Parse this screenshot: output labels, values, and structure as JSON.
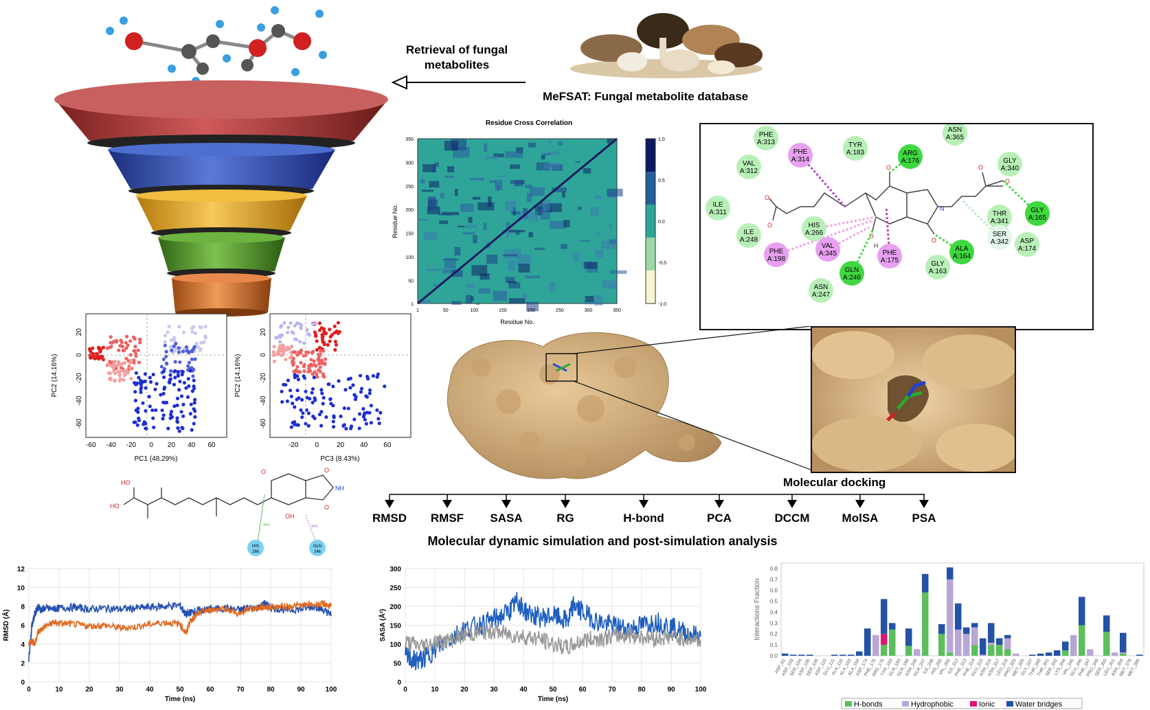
{
  "header": {
    "retrieval_line1": "Retrieval of fungal",
    "retrieval_line2": "metabolites",
    "database_label": "MeFSAT: Fungal metabolite database"
  },
  "dccm": {
    "title": "Residue Cross Correlation",
    "xlabel": "Residue No.",
    "ylabel": "Residue No.",
    "xticks": [
      "1",
      "50",
      "100",
      "150",
      "200",
      "250",
      "300",
      "350"
    ],
    "yticks": [
      "1",
      "50",
      "100",
      "150",
      "200",
      "250",
      "300",
      "350"
    ],
    "colorbar_ticks": [
      "1.0",
      "0.5",
      "0.0",
      "-0.5",
      "-1.0"
    ]
  },
  "interaction_map": {
    "residues": [
      {
        "name": "PHE",
        "num": "A:313",
        "kind": "vdw"
      },
      {
        "name": "VAL",
        "num": "A:312",
        "kind": "vdw"
      },
      {
        "name": "PHE",
        "num": "A:314",
        "kind": "pi"
      },
      {
        "name": "TYR",
        "num": "A:183",
        "kind": "vdw"
      },
      {
        "name": "ARG",
        "num": "A:176",
        "kind": "hbond"
      },
      {
        "name": "ASN",
        "num": "A:365",
        "kind": "vdw"
      },
      {
        "name": "GLY",
        "num": "A:340",
        "kind": "vdw"
      },
      {
        "name": "ILE",
        "num": "A:311",
        "kind": "vdw"
      },
      {
        "name": "GLY",
        "num": "A:165",
        "kind": "hbond"
      },
      {
        "name": "THR",
        "num": "A:341",
        "kind": "vdw"
      },
      {
        "name": "ILE",
        "num": "A:248",
        "kind": "vdw"
      },
      {
        "name": "HIS",
        "num": "A:266",
        "kind": "vdw"
      },
      {
        "name": "SER",
        "num": "A:342",
        "kind": "weak"
      },
      {
        "name": "ASP",
        "num": "A:174",
        "kind": "vdw"
      },
      {
        "name": "PHE",
        "num": "A:198",
        "kind": "pi"
      },
      {
        "name": "VAL",
        "num": "A:345",
        "kind": "pi"
      },
      {
        "name": "PHE",
        "num": "A:175",
        "kind": "pi"
      },
      {
        "name": "ALA",
        "num": "A:164",
        "kind": "hbond"
      },
      {
        "name": "GLN",
        "num": "A:246",
        "kind": "hbond"
      },
      {
        "name": "GLY",
        "num": "A:163",
        "kind": "vdw"
      },
      {
        "name": "ASN",
        "num": "A:247",
        "kind": "vdw"
      }
    ]
  },
  "pca": {
    "plot1": {
      "xlabel": "PC1 (48.29%)",
      "ylabel": "PC2 (14.16%)",
      "xticks": [
        "-60",
        "-40",
        "-20",
        "0",
        "20",
        "40",
        "60"
      ],
      "yticks": [
        "20",
        "0",
        "-20",
        "-40",
        "-60"
      ]
    },
    "plot2": {
      "xlabel": "PC3 (8.43%)",
      "ylabel": "PC2 (14.16%)",
      "xticks": [
        "-20",
        "0",
        "20",
        "40",
        "60"
      ],
      "yticks": [
        "20",
        "0",
        "-20",
        "-40",
        "-60"
      ]
    }
  },
  "ligand2d": {
    "atoms": [
      "HO",
      "HO",
      "OH",
      "O",
      "O",
      "NH",
      "O"
    ],
    "contacts": [
      {
        "res": "HIS",
        "num": "266",
        "pct": "40%"
      },
      {
        "res": "GLN",
        "num": "246",
        "pct": "39%"
      }
    ]
  },
  "docking_label": "Molecular docking",
  "analyses": [
    "RMSD",
    "RMSF",
    "SASA",
    "RG",
    "H-bond",
    "PCA",
    "DCCM",
    "MolSA",
    "PSA"
  ],
  "md_label": "Molecular dynamic simulation and post-simulation analysis",
  "colors": {
    "funnel": [
      "#b83a3a",
      "#2f4fb3",
      "#e8a91e",
      "#4f9a2a",
      "#d6752a"
    ],
    "rmsd_blue": "#2450b0",
    "rmsd_orange": "#e06a20",
    "sasa_blue": "#1e5fbf",
    "sasa_gray": "#999999",
    "hbonds": "#5cbf5c",
    "hydrophobic": "#b7a6d6",
    "ionic": "#e0146e",
    "water": "#2352a6"
  },
  "chart_data": [
    {
      "type": "line",
      "title": "",
      "xlabel": "Time (ns)",
      "ylabel": "RMSD (Å)",
      "xlim": [
        0,
        100
      ],
      "ylim": [
        0,
        12
      ],
      "xticks": [
        "0",
        "10",
        "20",
        "30",
        "40",
        "50",
        "60",
        "70",
        "80",
        "90",
        "100"
      ],
      "yticks": [
        "0",
        "2",
        "4",
        "6",
        "8",
        "10",
        "12"
      ],
      "series": [
        {
          "x": [
            0,
            1,
            2,
            3,
            4,
            5,
            8,
            10,
            15,
            20,
            25,
            30,
            35,
            40,
            45,
            50,
            52,
            53,
            55,
            58,
            60,
            65,
            70,
            72,
            75,
            78,
            80,
            85,
            90,
            95,
            98,
            100
          ],
          "y": [
            2.5,
            6.0,
            7.2,
            8.0,
            7.6,
            7.8,
            7.7,
            7.8,
            7.9,
            7.7,
            7.8,
            7.7,
            7.8,
            7.9,
            8.0,
            8.1,
            7.1,
            7.3,
            7.5,
            7.6,
            7.7,
            7.8,
            7.6,
            7.9,
            7.7,
            8.3,
            7.9,
            7.6,
            7.7,
            8.0,
            7.5,
            7.1
          ]
        },
        {
          "x": [
            0,
            1,
            2,
            3,
            5,
            8,
            10,
            15,
            20,
            25,
            30,
            35,
            40,
            45,
            50,
            52,
            53,
            55,
            58,
            60,
            65,
            70,
            72,
            75,
            78,
            80,
            85,
            90,
            95,
            98,
            100
          ],
          "y": [
            4.0,
            4.4,
            4.0,
            5.2,
            5.8,
            6.3,
            6.2,
            6.1,
            5.9,
            6.0,
            5.7,
            5.8,
            6.1,
            6.3,
            6.1,
            5.1,
            6.2,
            7.0,
            7.5,
            7.6,
            7.8,
            7.1,
            7.7,
            7.8,
            7.9,
            7.9,
            8.0,
            8.1,
            8.2,
            8.2,
            8.0
          ]
        }
      ]
    },
    {
      "type": "line",
      "title": "",
      "xlabel": "Time (ns)",
      "ylabel": "SASA (Å²)",
      "xlim": [
        0,
        100
      ],
      "ylim": [
        0,
        300
      ],
      "xticks": [
        "0",
        "10",
        "20",
        "30",
        "40",
        "50",
        "60",
        "70",
        "80",
        "90",
        "100"
      ],
      "yticks": [
        "0",
        "50",
        "100",
        "150",
        "200",
        "250",
        "300"
      ],
      "series": [
        {
          "x": [
            0,
            3,
            6,
            10,
            15,
            20,
            25,
            30,
            35,
            38,
            40,
            45,
            50,
            55,
            57,
            60,
            65,
            70,
            75,
            80,
            85,
            90,
            95,
            100
          ],
          "y": [
            70,
            55,
            60,
            85,
            115,
            140,
            150,
            165,
            185,
            215,
            190,
            170,
            175,
            160,
            205,
            185,
            160,
            150,
            140,
            150,
            160,
            145,
            130,
            120
          ]
        },
        {
          "x": [
            0,
            5,
            10,
            15,
            20,
            25,
            30,
            35,
            40,
            45,
            50,
            55,
            60,
            65,
            70,
            75,
            80,
            85,
            90,
            95,
            100
          ],
          "y": [
            105,
            95,
            105,
            110,
            125,
            130,
            135,
            125,
            120,
            115,
            100,
            90,
            110,
            115,
            120,
            125,
            120,
            115,
            120,
            115,
            110
          ]
        }
      ]
    },
    {
      "type": "bar",
      "title": "",
      "xlabel": "",
      "ylabel": "Interactions Fraction",
      "ylim": [
        0,
        0.85
      ],
      "yticks": [
        "0.0",
        "0.1",
        "0.2",
        "0.3",
        "0.4",
        "0.5",
        "0.6",
        "0.7",
        "0.8"
      ],
      "categories": [
        "ASP_81",
        "ASP_103",
        "SER_104",
        "ASP_105",
        "SER_106",
        "ASP_110",
        "GLU_111",
        "ALA_116",
        "ALA_163",
        "ALA_164",
        "ASP_174",
        "PHE_175",
        "ARG_176",
        "TYR_183",
        "GLN_193",
        "GLN_198",
        "ASN_246",
        "GLN_247",
        "ILE_248",
        "HIS_265",
        "VAL_266",
        "ILE_312",
        "PHE_313",
        "PHE_314",
        "GLU_315",
        "ASN_316",
        "ASN_317",
        "LEU_318",
        "PRO_323",
        "MET_326",
        "GLY_327",
        "THR_340",
        "THR_341",
        "SER_342",
        "LYS_344",
        "VAL_345",
        "GLU_346",
        "PHE_347",
        "PRO_348",
        "SER_350",
        "LEU_351",
        "ASN_354",
        "MET_379",
        "MET_380"
      ],
      "series": [
        {
          "name": "H-bonds",
          "values": [
            0,
            0,
            0,
            0,
            0,
            0,
            0,
            0,
            0,
            0,
            0,
            0,
            0.1,
            0.24,
            0,
            0.09,
            0,
            0.58,
            0,
            0.2,
            0.03,
            0,
            0,
            0.1,
            0,
            0.1,
            0.1,
            0.06,
            0,
            0,
            0,
            0,
            0,
            0,
            0.05,
            0,
            0.28,
            0,
            0,
            0.22,
            0,
            0.02,
            0,
            0
          ]
        },
        {
          "name": "Hydrophobic",
          "values": [
            0,
            0,
            0,
            0,
            0,
            0,
            0,
            0,
            0,
            0,
            0,
            0.19,
            0,
            0,
            0,
            0,
            0.06,
            0,
            0,
            0,
            0.67,
            0.24,
            0.2,
            0.16,
            0.01,
            0.02,
            0,
            0.1,
            0.02,
            0,
            0,
            0,
            0,
            0,
            0,
            0.19,
            0,
            0.06,
            0,
            0,
            0.03,
            0.01,
            0,
            0
          ]
        },
        {
          "name": "Ionic",
          "values": [
            0,
            0,
            0,
            0,
            0,
            0,
            0,
            0,
            0,
            0,
            0,
            0,
            0.1,
            0,
            0,
            0,
            0,
            0,
            0,
            0,
            0,
            0,
            0,
            0,
            0,
            0,
            0,
            0,
            0,
            0,
            0,
            0,
            0,
            0,
            0,
            0,
            0,
            0,
            0,
            0,
            0,
            0,
            0,
            0
          ]
        },
        {
          "name": "Water bridges",
          "values": [
            0.02,
            0.01,
            0.01,
            0.01,
            0,
            0,
            0.01,
            0.01,
            0.01,
            0.04,
            0.25,
            0,
            0.32,
            0.06,
            0,
            0.16,
            0,
            0.17,
            0,
            0.09,
            0.11,
            0.24,
            0.06,
            0.04,
            0.15,
            0.18,
            0.06,
            0.03,
            0,
            0,
            0.01,
            0.02,
            0.03,
            0.05,
            0.08,
            0,
            0.26,
            0,
            0,
            0.15,
            0,
            0.18,
            0,
            0.01
          ]
        }
      ]
    }
  ],
  "legend": [
    "H-bonds",
    "Hydrophobic",
    "Ionic",
    "Water bridges"
  ]
}
